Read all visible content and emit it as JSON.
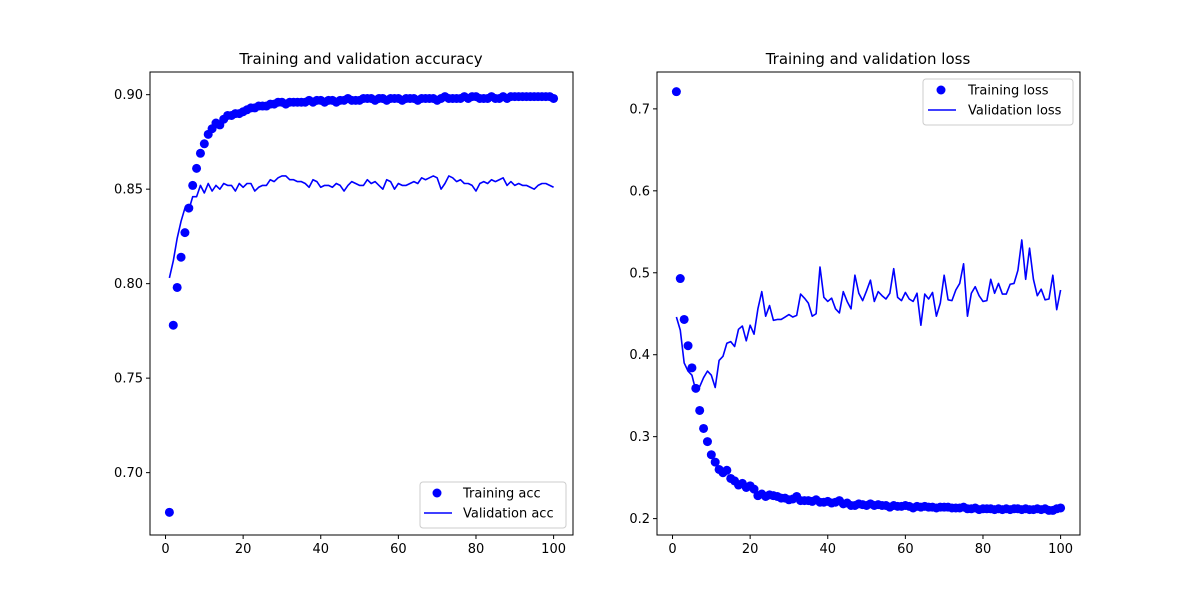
{
  "chart_data": [
    {
      "type": "scatter",
      "title": "Training and validation accuracy",
      "xlabel": "",
      "ylabel": "",
      "xlim": [
        -4,
        105
      ],
      "ylim": [
        0.667,
        0.912
      ],
      "x_ticks": [
        0,
        20,
        40,
        60,
        80,
        100
      ],
      "x_tick_labels": [
        "0",
        "20",
        "40",
        "60",
        "80",
        "100"
      ],
      "y_ticks": [
        0.7,
        0.75,
        0.8,
        0.85,
        0.9
      ],
      "y_tick_labels": [
        "0.70",
        "0.75",
        "0.80",
        "0.85",
        "0.90"
      ],
      "grid": false,
      "legend": {
        "placement": "lower-right",
        "entries": [
          "Training acc",
          "Validation acc"
        ]
      },
      "series": [
        {
          "name": "Training acc",
          "kind": "markers",
          "color": "#0000ff",
          "x": [
            1,
            2,
            3,
            4,
            5,
            6,
            7,
            8,
            9,
            10,
            11,
            12,
            13,
            14,
            15,
            16,
            17,
            18,
            19,
            20,
            21,
            22,
            23,
            24,
            25,
            26,
            27,
            28,
            29,
            30,
            31,
            32,
            33,
            34,
            35,
            36,
            37,
            38,
            39,
            40,
            41,
            42,
            43,
            44,
            45,
            46,
            47,
            48,
            49,
            50,
            51,
            52,
            53,
            54,
            55,
            56,
            57,
            58,
            59,
            60,
            61,
            62,
            63,
            64,
            65,
            66,
            67,
            68,
            69,
            70,
            71,
            72,
            73,
            74,
            75,
            76,
            77,
            78,
            79,
            80,
            81,
            82,
            83,
            84,
            85,
            86,
            87,
            88,
            89,
            90,
            91,
            92,
            93,
            94,
            95,
            96,
            97,
            98,
            99,
            100
          ],
          "y": [
            0.679,
            0.778,
            0.798,
            0.814,
            0.827,
            0.84,
            0.852,
            0.861,
            0.869,
            0.874,
            0.879,
            0.882,
            0.885,
            0.884,
            0.887,
            0.889,
            0.889,
            0.89,
            0.89,
            0.891,
            0.892,
            0.893,
            0.893,
            0.894,
            0.894,
            0.894,
            0.895,
            0.895,
            0.896,
            0.896,
            0.895,
            0.896,
            0.896,
            0.896,
            0.896,
            0.896,
            0.897,
            0.896,
            0.897,
            0.897,
            0.896,
            0.897,
            0.897,
            0.896,
            0.897,
            0.897,
            0.898,
            0.897,
            0.897,
            0.897,
            0.898,
            0.898,
            0.898,
            0.897,
            0.898,
            0.898,
            0.897,
            0.898,
            0.898,
            0.898,
            0.897,
            0.898,
            0.898,
            0.898,
            0.897,
            0.898,
            0.898,
            0.898,
            0.898,
            0.897,
            0.898,
            0.899,
            0.898,
            0.898,
            0.898,
            0.898,
            0.899,
            0.898,
            0.899,
            0.899,
            0.898,
            0.898,
            0.898,
            0.899,
            0.898,
            0.898,
            0.899,
            0.898,
            0.899,
            0.899,
            0.899,
            0.899,
            0.899,
            0.899,
            0.899,
            0.899,
            0.899,
            0.899,
            0.899,
            0.898
          ]
        },
        {
          "name": "Validation acc",
          "kind": "line",
          "color": "#0000ff",
          "x": [
            1,
            2,
            3,
            4,
            5,
            6,
            7,
            8,
            9,
            10,
            11,
            12,
            13,
            14,
            15,
            16,
            17,
            18,
            19,
            20,
            21,
            22,
            23,
            24,
            25,
            26,
            27,
            28,
            29,
            30,
            31,
            32,
            33,
            34,
            35,
            36,
            37,
            38,
            39,
            40,
            41,
            42,
            43,
            44,
            45,
            46,
            47,
            48,
            49,
            50,
            51,
            52,
            53,
            54,
            55,
            56,
            57,
            58,
            59,
            60,
            61,
            62,
            63,
            64,
            65,
            66,
            67,
            68,
            69,
            70,
            71,
            72,
            73,
            74,
            75,
            76,
            77,
            78,
            79,
            80,
            81,
            82,
            83,
            84,
            85,
            86,
            87,
            88,
            89,
            90,
            91,
            92,
            93,
            94,
            95,
            96,
            97,
            98,
            99,
            100
          ],
          "y": [
            0.803,
            0.812,
            0.824,
            0.833,
            0.84,
            0.839,
            0.846,
            0.846,
            0.852,
            0.848,
            0.853,
            0.849,
            0.852,
            0.85,
            0.853,
            0.852,
            0.852,
            0.849,
            0.853,
            0.851,
            0.853,
            0.853,
            0.849,
            0.851,
            0.852,
            0.852,
            0.855,
            0.854,
            0.856,
            0.857,
            0.857,
            0.855,
            0.855,
            0.854,
            0.854,
            0.853,
            0.851,
            0.855,
            0.854,
            0.851,
            0.852,
            0.852,
            0.851,
            0.853,
            0.852,
            0.849,
            0.852,
            0.854,
            0.853,
            0.852,
            0.852,
            0.855,
            0.853,
            0.854,
            0.852,
            0.85,
            0.855,
            0.854,
            0.85,
            0.853,
            0.852,
            0.852,
            0.853,
            0.854,
            0.853,
            0.856,
            0.855,
            0.856,
            0.857,
            0.856,
            0.85,
            0.853,
            0.857,
            0.856,
            0.854,
            0.855,
            0.853,
            0.853,
            0.852,
            0.849,
            0.853,
            0.854,
            0.853,
            0.855,
            0.854,
            0.855,
            0.856,
            0.852,
            0.854,
            0.852,
            0.853,
            0.852,
            0.852,
            0.851,
            0.85,
            0.852,
            0.853,
            0.853,
            0.852,
            0.851
          ]
        }
      ]
    },
    {
      "type": "scatter",
      "title": "Training and validation loss",
      "xlabel": "",
      "ylabel": "",
      "xlim": [
        -4,
        105
      ],
      "ylim": [
        0.18,
        0.745
      ],
      "x_ticks": [
        0,
        20,
        40,
        60,
        80,
        100
      ],
      "x_tick_labels": [
        "0",
        "20",
        "40",
        "60",
        "80",
        "100"
      ],
      "y_ticks": [
        0.2,
        0.3,
        0.4,
        0.5,
        0.6,
        0.7
      ],
      "y_tick_labels": [
        "0.2",
        "0.3",
        "0.4",
        "0.5",
        "0.6",
        "0.7"
      ],
      "grid": false,
      "legend": {
        "placement": "upper-right",
        "entries": [
          "Training loss",
          "Validation loss"
        ]
      },
      "series": [
        {
          "name": "Training loss",
          "kind": "markers",
          "color": "#0000ff",
          "x": [
            1,
            2,
            3,
            4,
            5,
            6,
            7,
            8,
            9,
            10,
            11,
            12,
            13,
            14,
            15,
            16,
            17,
            18,
            19,
            20,
            21,
            22,
            23,
            24,
            25,
            26,
            27,
            28,
            29,
            30,
            31,
            32,
            33,
            34,
            35,
            36,
            37,
            38,
            39,
            40,
            41,
            42,
            43,
            44,
            45,
            46,
            47,
            48,
            49,
            50,
            51,
            52,
            53,
            54,
            55,
            56,
            57,
            58,
            59,
            60,
            61,
            62,
            63,
            64,
            65,
            66,
            67,
            68,
            69,
            70,
            71,
            72,
            73,
            74,
            75,
            76,
            77,
            78,
            79,
            80,
            81,
            82,
            83,
            84,
            85,
            86,
            87,
            88,
            89,
            90,
            91,
            92,
            93,
            94,
            95,
            96,
            97,
            98,
            99,
            100
          ],
          "y": [
            0.721,
            0.493,
            0.443,
            0.411,
            0.384,
            0.359,
            0.332,
            0.31,
            0.294,
            0.278,
            0.269,
            0.26,
            0.256,
            0.259,
            0.249,
            0.246,
            0.241,
            0.243,
            0.238,
            0.24,
            0.236,
            0.228,
            0.23,
            0.227,
            0.229,
            0.228,
            0.227,
            0.225,
            0.225,
            0.223,
            0.224,
            0.227,
            0.222,
            0.222,
            0.222,
            0.221,
            0.223,
            0.22,
            0.22,
            0.221,
            0.219,
            0.22,
            0.222,
            0.218,
            0.219,
            0.216,
            0.216,
            0.218,
            0.217,
            0.216,
            0.218,
            0.216,
            0.217,
            0.216,
            0.216,
            0.214,
            0.216,
            0.215,
            0.215,
            0.216,
            0.215,
            0.213,
            0.215,
            0.214,
            0.215,
            0.214,
            0.214,
            0.213,
            0.214,
            0.214,
            0.214,
            0.213,
            0.213,
            0.213,
            0.214,
            0.212,
            0.212,
            0.213,
            0.211,
            0.212,
            0.212,
            0.212,
            0.211,
            0.212,
            0.211,
            0.212,
            0.211,
            0.212,
            0.212,
            0.211,
            0.212,
            0.211,
            0.211,
            0.212,
            0.211,
            0.212,
            0.21,
            0.21,
            0.212,
            0.213
          ]
        },
        {
          "name": "Validation loss",
          "kind": "line",
          "color": "#0000ff",
          "x": [
            1,
            2,
            3,
            4,
            5,
            6,
            7,
            8,
            9,
            10,
            11,
            12,
            13,
            14,
            15,
            16,
            17,
            18,
            19,
            20,
            21,
            22,
            23,
            24,
            25,
            26,
            27,
            28,
            29,
            30,
            31,
            32,
            33,
            34,
            35,
            36,
            37,
            38,
            39,
            40,
            41,
            42,
            43,
            44,
            45,
            46,
            47,
            48,
            49,
            50,
            51,
            52,
            53,
            54,
            55,
            56,
            57,
            58,
            59,
            60,
            61,
            62,
            63,
            64,
            65,
            66,
            67,
            68,
            69,
            70,
            71,
            72,
            73,
            74,
            75,
            76,
            77,
            78,
            79,
            80,
            81,
            82,
            83,
            84,
            85,
            86,
            87,
            88,
            89,
            90,
            91,
            92,
            93,
            94,
            95,
            96,
            97,
            98,
            99,
            100
          ],
          "y": [
            0.446,
            0.43,
            0.39,
            0.38,
            0.375,
            0.356,
            0.361,
            0.372,
            0.38,
            0.375,
            0.36,
            0.393,
            0.398,
            0.414,
            0.416,
            0.41,
            0.431,
            0.435,
            0.417,
            0.436,
            0.425,
            0.456,
            0.477,
            0.447,
            0.46,
            0.442,
            0.443,
            0.443,
            0.446,
            0.449,
            0.446,
            0.448,
            0.474,
            0.469,
            0.463,
            0.447,
            0.45,
            0.507,
            0.47,
            0.465,
            0.469,
            0.456,
            0.451,
            0.477,
            0.465,
            0.456,
            0.497,
            0.475,
            0.466,
            0.478,
            0.491,
            0.465,
            0.477,
            0.472,
            0.468,
            0.475,
            0.505,
            0.47,
            0.466,
            0.476,
            0.468,
            0.465,
            0.475,
            0.436,
            0.474,
            0.468,
            0.476,
            0.447,
            0.463,
            0.497,
            0.467,
            0.466,
            0.479,
            0.487,
            0.511,
            0.447,
            0.475,
            0.483,
            0.472,
            0.465,
            0.466,
            0.492,
            0.475,
            0.487,
            0.474,
            0.474,
            0.486,
            0.487,
            0.503,
            0.54,
            0.492,
            0.53,
            0.492,
            0.472,
            0.48,
            0.467,
            0.468,
            0.497,
            0.455,
            0.479
          ]
        }
      ]
    }
  ]
}
